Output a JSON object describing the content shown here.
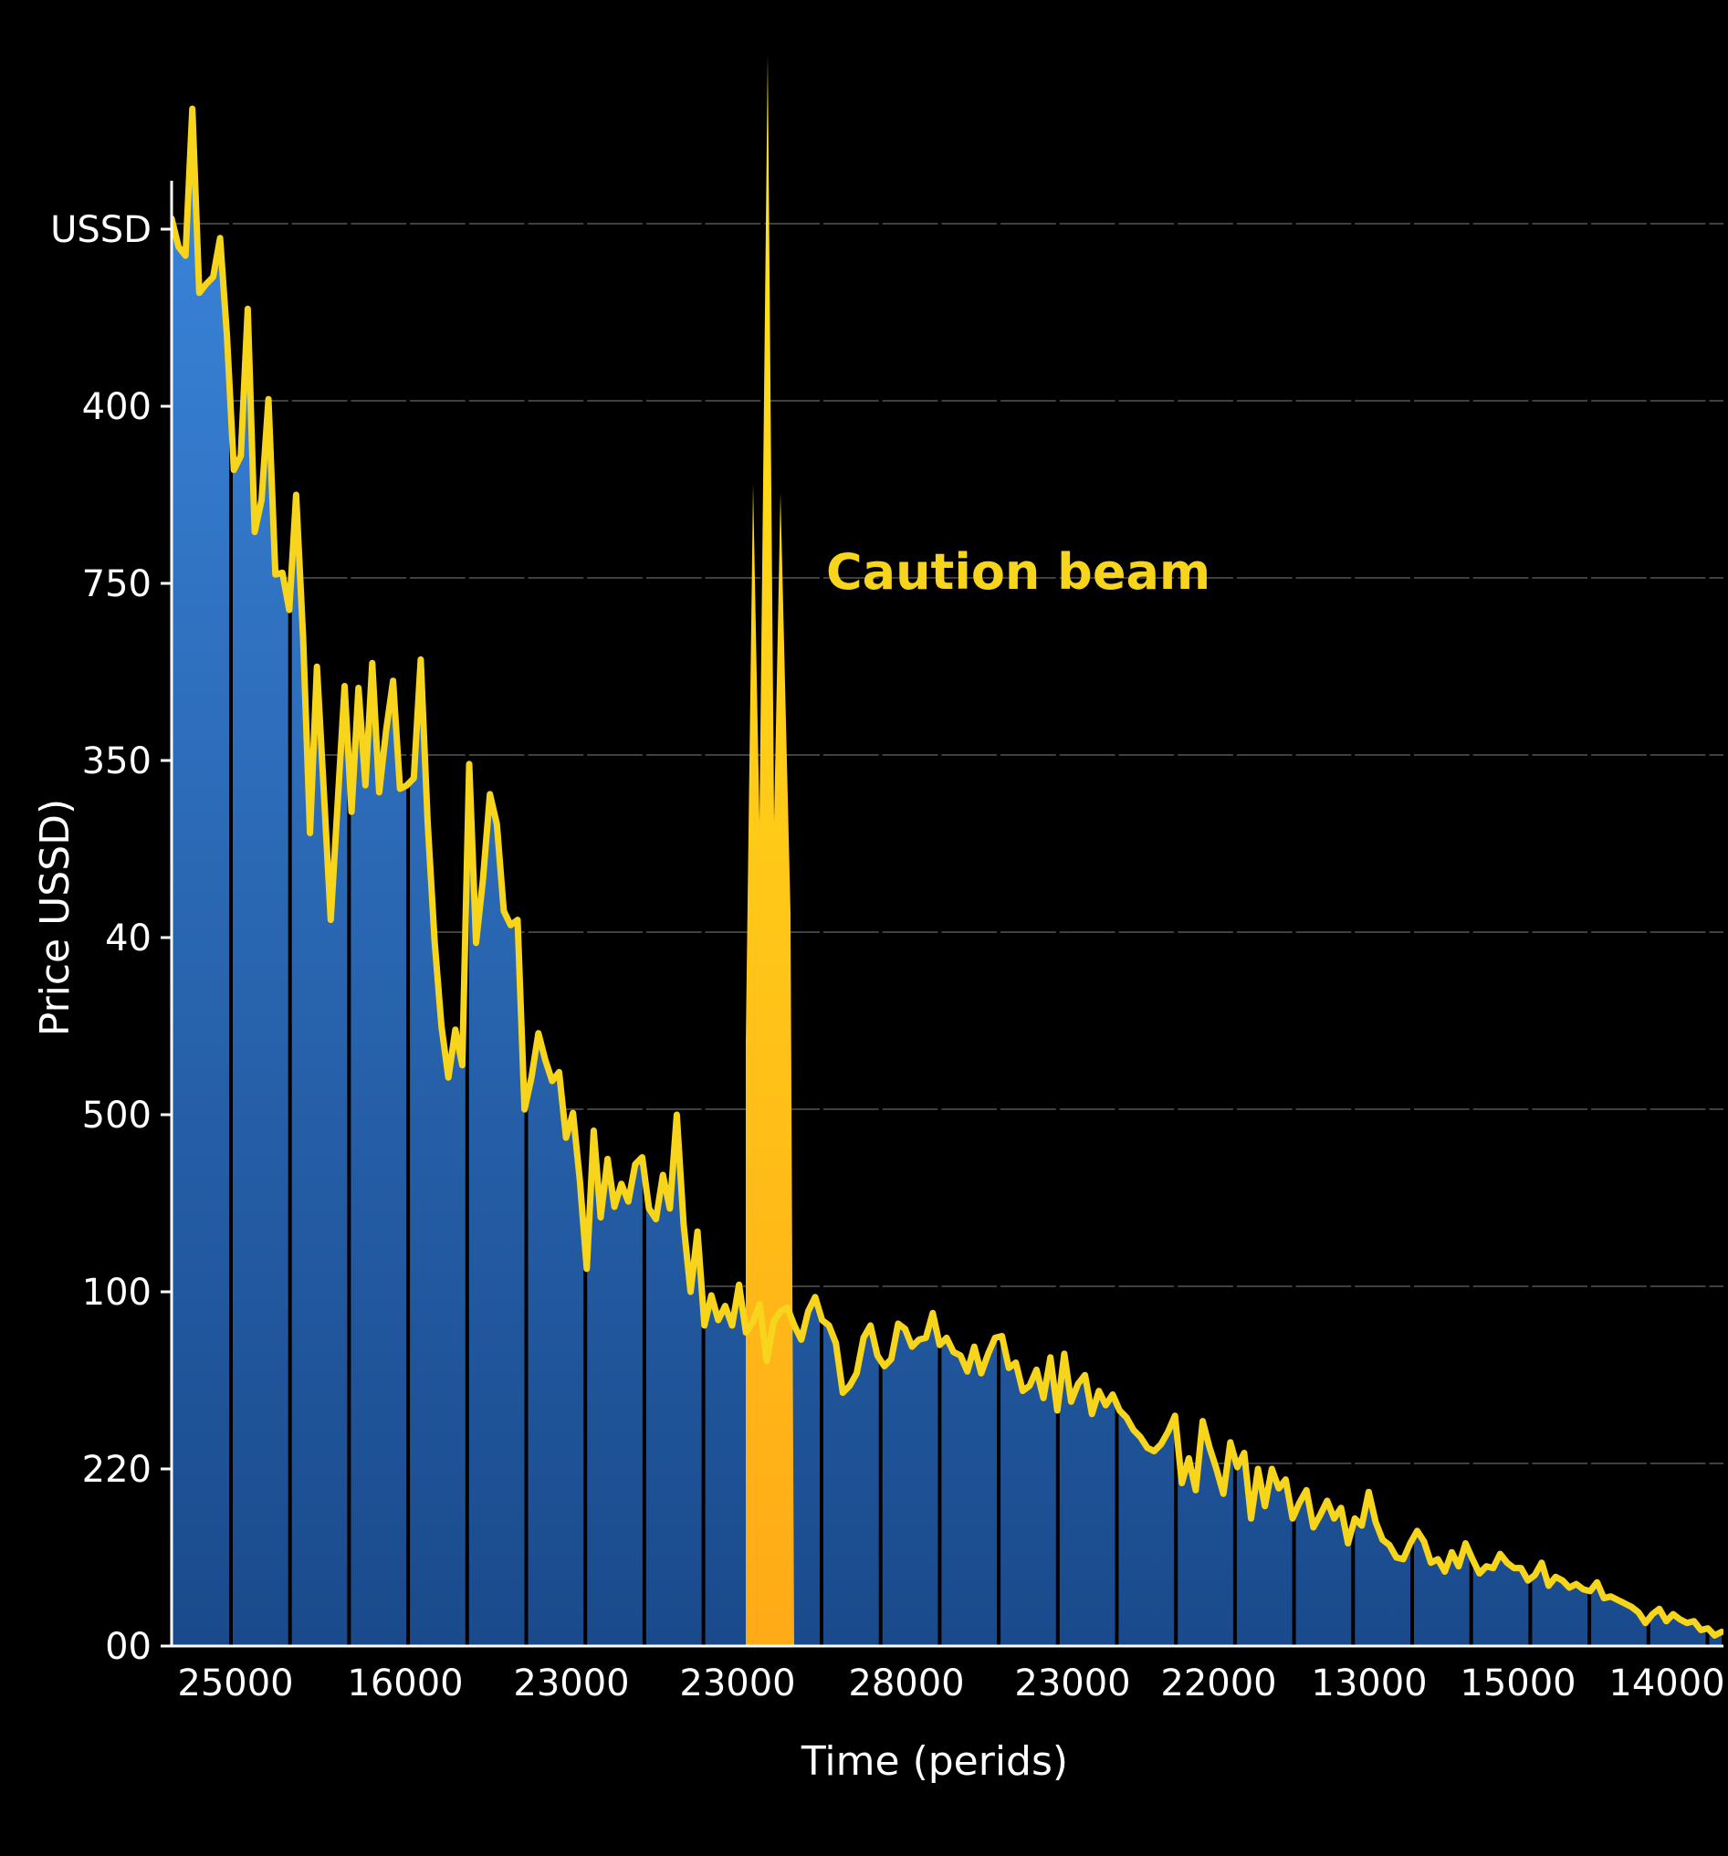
{
  "chart_data": {
    "type": "area",
    "title": "",
    "xlabel": "Time (perids)",
    "ylabel": "Price USSD)",
    "y_tick_labels": [
      "00",
      "220",
      "100",
      "500",
      "40",
      "350",
      "750",
      "400",
      "USSD"
    ],
    "x_tick_labels": [
      "25000",
      "16000",
      "23000",
      "23000",
      "28000",
      "23000",
      "22000",
      "13000",
      "15000",
      "14000"
    ],
    "annotation": "Caution beam",
    "grid": true,
    "colors": {
      "area_top": "#3b86dc",
      "area_bottom": "#1a4a8c",
      "line": "#f7d51c",
      "beam_top": "#ffe81a",
      "beam_bottom": "#ffaa17",
      "background": "#000000",
      "grid": "#555555",
      "divider": "#000000"
    },
    "series": [
      {
        "y": [
          8.06,
          7.9,
          7.85,
          8.68,
          7.64,
          7.69,
          7.73,
          7.95,
          7.4,
          6.64,
          6.72,
          7.55,
          6.29,
          6.47,
          7.04,
          6.05,
          6.06,
          5.85,
          6.5,
          5.7,
          4.59,
          5.53,
          4.82,
          4.1,
          4.76,
          5.42,
          4.71,
          5.41,
          4.86,
          5.55,
          4.82,
          5.17,
          5.45,
          4.84,
          4.86,
          4.9,
          5.57,
          4.65,
          3.98,
          3.5,
          3.21,
          3.48,
          3.28,
          4.98,
          3.97,
          4.33,
          4.81,
          4.64,
          4.15,
          4.07,
          4.1,
          3.03,
          3.21,
          3.46,
          3.31,
          3.19,
          3.24,
          2.87,
          3.01,
          2.63,
          2.13,
          2.91,
          2.42,
          2.75,
          2.48,
          2.61,
          2.51,
          2.72,
          2.76,
          2.47,
          2.41,
          2.66,
          2.47,
          3.0,
          2.38,
          2.0,
          2.34,
          1.81,
          1.98,
          1.84,
          1.92,
          1.81,
          2.04,
          1.77,
          1.83,
          1.93,
          1.61,
          1.83,
          1.89,
          1.91,
          1.81,
          1.73,
          1.89,
          1.97,
          1.84,
          1.81,
          1.71,
          1.43,
          1.47,
          1.54,
          1.74,
          1.81,
          1.64,
          1.58,
          1.62,
          1.82,
          1.79,
          1.69,
          1.73,
          1.74,
          1.88,
          1.7,
          1.74,
          1.66,
          1.64,
          1.55,
          1.69,
          1.54,
          1.65,
          1.74,
          1.75,
          1.57,
          1.6,
          1.44,
          1.47,
          1.56,
          1.4,
          1.63,
          1.33,
          1.65,
          1.38,
          1.48,
          1.53,
          1.31,
          1.44,
          1.36,
          1.42,
          1.33,
          1.29,
          1.22,
          1.18,
          1.12,
          1.1,
          1.14,
          1.21,
          1.3,
          0.92,
          1.06,
          0.88,
          1.27,
          1.12,
          1.0,
          0.86,
          1.15,
          1.01,
          1.09,
          0.72,
          1.0,
          0.79,
          1.0,
          0.89,
          0.94,
          0.72,
          0.81,
          0.88,
          0.67,
          0.74,
          0.82,
          0.72,
          0.78,
          0.58,
          0.72,
          0.68,
          0.87,
          0.7,
          0.6,
          0.57,
          0.5,
          0.49,
          0.58,
          0.65,
          0.59,
          0.47,
          0.49,
          0.42,
          0.53,
          0.45,
          0.58,
          0.49,
          0.41,
          0.45,
          0.44,
          0.52,
          0.47,
          0.44,
          0.44,
          0.37,
          0.4,
          0.47,
          0.34,
          0.39,
          0.37,
          0.33,
          0.35,
          0.32,
          0.31,
          0.36,
          0.27,
          0.28,
          0.26,
          0.24,
          0.22,
          0.19,
          0.13,
          0.18,
          0.21,
          0.14,
          0.18,
          0.15,
          0.13,
          0.14,
          0.09,
          0.1,
          0.06,
          0.08
        ]
      }
    ]
  }
}
